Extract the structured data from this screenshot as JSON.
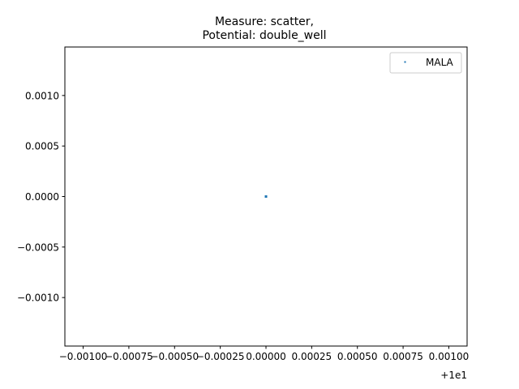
{
  "chart_data": {
    "type": "scatter",
    "title_lines": [
      "Measure: scatter,",
      "Potential: double_well"
    ],
    "xlabel": "",
    "ylabel": "",
    "x_offset_label": "+1e1",
    "x_ticks": [
      {
        "value": -0.001,
        "label": "−0.00100"
      },
      {
        "value": -0.00075,
        "label": "−0.00075"
      },
      {
        "value": -0.0005,
        "label": "−0.00050"
      },
      {
        "value": -0.00025,
        "label": "−0.00025"
      },
      {
        "value": 0.0,
        "label": "0.00000"
      },
      {
        "value": 0.00025,
        "label": "0.00025"
      },
      {
        "value": 0.0005,
        "label": "0.00050"
      },
      {
        "value": 0.00075,
        "label": "0.00075"
      },
      {
        "value": 0.001,
        "label": "0.00100"
      }
    ],
    "y_ticks": [
      {
        "value": 0.001,
        "label": "0.0010"
      },
      {
        "value": 0.0005,
        "label": "0.0005"
      },
      {
        "value": 0.0,
        "label": "0.0000"
      },
      {
        "value": -0.0005,
        "label": "−0.0005"
      },
      {
        "value": -0.001,
        "label": "−0.0010"
      }
    ],
    "xlim": [
      -0.0011,
      0.0011
    ],
    "ylim": [
      -0.00148,
      0.00148
    ],
    "grid": false,
    "legend": {
      "position": "top-right",
      "entries": [
        "MALA"
      ]
    },
    "series": [
      {
        "name": "MALA",
        "color": "#1f77b4",
        "points": [
          {
            "x": 0.0,
            "y": 0.0
          }
        ]
      }
    ]
  }
}
